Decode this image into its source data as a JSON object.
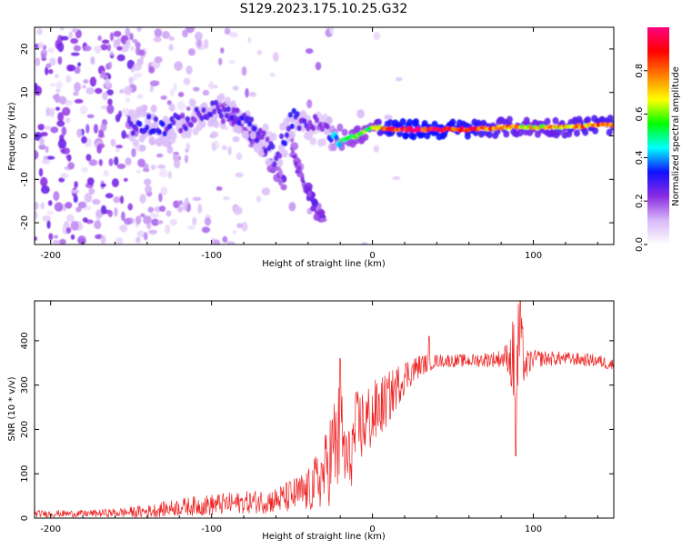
{
  "figure_title": "S129.2023.175.10.25.G32",
  "chart_data": [
    {
      "type": "heatmap",
      "name": "spectrogram",
      "xlabel": "Height of straight line (km)",
      "ylabel": "Frequency (Hz)",
      "xlim": [
        -210,
        150
      ],
      "ylim": [
        -25,
        25
      ],
      "xticks": [
        -200,
        -100,
        0,
        100
      ],
      "yticks": [
        -20,
        -10,
        0,
        10,
        20
      ],
      "colorbar": {
        "label": "Normalized spectral amplitude",
        "range": [
          0.0,
          1.0
        ],
        "ticks": [
          0.0,
          0.2,
          0.4,
          0.6,
          0.8
        ],
        "colormap": [
          "#ffffff",
          "#d8b8f8",
          "#8a2be2",
          "#1010ff",
          "#00ffff",
          "#00ff00",
          "#ffff00",
          "#ff8000",
          "#ff0000",
          "#ff0080"
        ]
      },
      "ridge": {
        "x": [
          -150,
          -140,
          -130,
          -120,
          -110,
          -100,
          -90,
          -80,
          -70,
          -60,
          -50,
          -40,
          -30,
          -25,
          -20,
          -10,
          0,
          10,
          20,
          40,
          60,
          80,
          100,
          120,
          140,
          150
        ],
        "y": [
          2,
          3,
          2,
          3,
          4,
          6,
          5,
          4,
          0,
          -5,
          4,
          3,
          2,
          -1,
          -1,
          0,
          2,
          1.5,
          1.5,
          1.5,
          1.5,
          2,
          2,
          2,
          2.5,
          2.5
        ],
        "amplitude": [
          0.25,
          0.3,
          0.3,
          0.25,
          0.25,
          0.3,
          0.25,
          0.3,
          0.25,
          0.25,
          0.3,
          0.25,
          0.2,
          0.4,
          0.5,
          0.6,
          0.6,
          0.9,
          0.95,
          0.95,
          0.9,
          0.75,
          0.7,
          0.75,
          0.8,
          0.8
        ]
      },
      "branches": [
        {
          "x": [
            -95,
            -85,
            -75,
            -65,
            -55
          ],
          "y": [
            7,
            4,
            0,
            -5,
            -11
          ]
        },
        {
          "x": [
            -50,
            -45,
            -40,
            -35,
            -30
          ],
          "y": [
            -2,
            -8,
            -13,
            -17,
            -19
          ]
        }
      ]
    },
    {
      "type": "line",
      "name": "snr",
      "color": "#ee2222",
      "xlabel": "Height of straight line (km)",
      "ylabel": "SNR (10 * v/v)",
      "xlim": [
        -210,
        150
      ],
      "ylim": [
        0,
        490
      ],
      "xticks": [
        -200,
        -100,
        0,
        100
      ],
      "yticks": [
        0,
        100,
        200,
        300,
        400
      ],
      "envelope": {
        "x": [
          -210,
          -180,
          -160,
          -140,
          -120,
          -100,
          -80,
          -60,
          -40,
          -30,
          -25,
          -20,
          -15,
          -10,
          0,
          10,
          20,
          30,
          40,
          60,
          80,
          85,
          90,
          92,
          95,
          100,
          120,
          140,
          150
        ],
        "mean": [
          10,
          10,
          12,
          15,
          25,
          30,
          35,
          40,
          60,
          100,
          150,
          180,
          120,
          200,
          230,
          270,
          320,
          345,
          355,
          355,
          360,
          365,
          330,
          400,
          340,
          360,
          360,
          355,
          345
        ],
        "spread": [
          8,
          8,
          10,
          15,
          20,
          25,
          25,
          30,
          50,
          80,
          120,
          140,
          80,
          90,
          80,
          60,
          40,
          25,
          15,
          15,
          20,
          40,
          180,
          90,
          40,
          20,
          15,
          15,
          15
        ]
      },
      "events": [
        {
          "x": 89,
          "y": 140
        },
        {
          "x": 92,
          "y": 490
        },
        {
          "x": -20,
          "y": 360
        },
        {
          "x": 35,
          "y": 410
        }
      ]
    }
  ]
}
